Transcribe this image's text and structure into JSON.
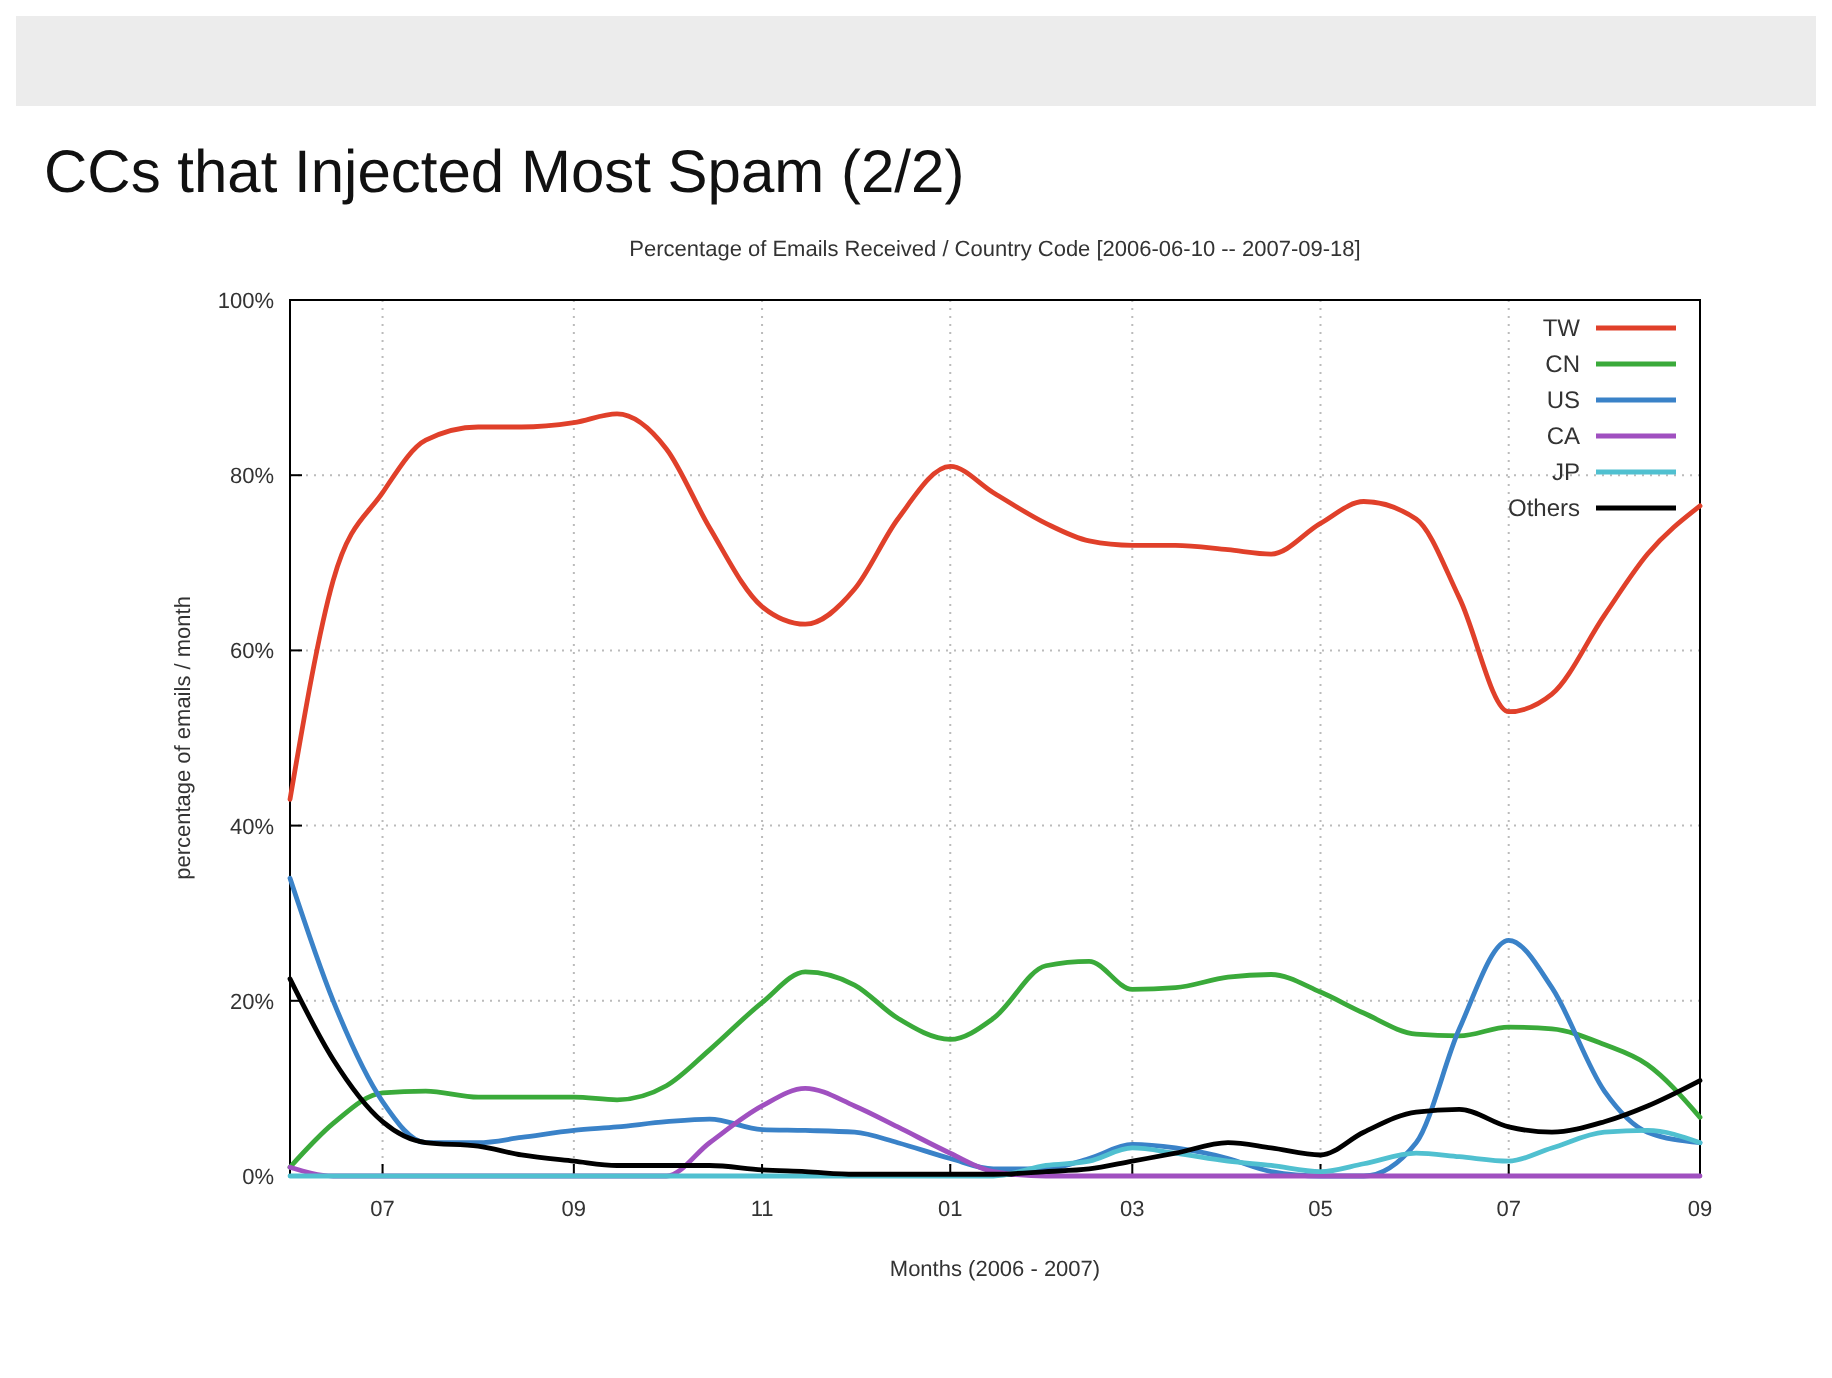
{
  "chart_data": {
    "type": "line",
    "title": "CCs that Injected Most Spam (2/2)",
    "subtitle": "Percentage of Emails Received / Country Code [2006-06-10 -- 2007-09-18]",
    "xlabel": "Months (2006 - 2007)",
    "ylabel": "percentage of emails / month",
    "x": [
      "2006-06-01",
      "2006-06-15",
      "2006-07-01",
      "2006-07-15",
      "2006-08-01",
      "2006-08-15",
      "2006-09-01",
      "2006-09-15",
      "2006-10-01",
      "2006-10-15",
      "2006-11-01",
      "2006-11-15",
      "2006-12-01",
      "2006-12-15",
      "2007-01-01",
      "2007-01-15",
      "2007-02-01",
      "2007-02-15",
      "2007-03-01",
      "2007-03-15",
      "2007-04-01",
      "2007-04-15",
      "2007-05-01",
      "2007-05-15",
      "2007-06-01",
      "2007-06-15",
      "2007-07-01",
      "2007-07-15",
      "2007-08-01",
      "2007-08-15",
      "2007-09-01"
    ],
    "series": [
      {
        "name": "TW",
        "color": "#e0402a",
        "values": [
          43,
          68,
          78,
          84,
          85.5,
          85.5,
          86,
          87,
          83,
          74,
          65,
          63,
          67,
          75,
          81,
          78,
          74.5,
          72.5,
          72,
          72,
          71.5,
          71,
          74.5,
          77,
          75,
          66,
          53,
          55,
          64,
          71,
          76.5
        ]
      },
      {
        "name": "CN",
        "color": "#3aaa3a",
        "values": [
          1,
          6,
          9.5,
          9.7,
          9,
          9,
          9,
          8.7,
          10.3,
          14.4,
          19.8,
          23.3,
          21.8,
          18,
          15.6,
          18,
          24,
          24.5,
          21.3,
          21.5,
          22.7,
          23,
          21,
          18.6,
          16.2,
          16,
          17,
          16.8,
          15,
          12.7,
          6.7
        ]
      },
      {
        "name": "US",
        "color": "#3a82c8",
        "values": [
          34,
          20,
          8.5,
          3.8,
          3.8,
          4.4,
          5.2,
          5.6,
          6.2,
          6.5,
          5.3,
          5.2,
          5,
          3.8,
          2,
          0.8,
          0.8,
          2,
          3.6,
          3.2,
          2,
          0.5,
          0,
          0,
          3.8,
          16.8,
          26.9,
          21.5,
          9.7,
          5,
          3.8
        ]
      },
      {
        "name": "CA",
        "color": "#a050c0",
        "values": [
          1,
          0,
          0,
          0,
          0,
          0,
          0,
          0,
          0,
          3.8,
          8,
          10,
          8,
          5.6,
          2.6,
          0.5,
          0,
          0,
          0,
          0,
          0,
          0,
          0,
          0,
          0,
          0,
          0,
          0,
          0,
          0,
          0
        ]
      },
      {
        "name": "JP",
        "color": "#50c0d0",
        "values": [
          0,
          0,
          0,
          0,
          0,
          0,
          0,
          0,
          0,
          0,
          0,
          0,
          0,
          0,
          0,
          0,
          1.2,
          1.7,
          3.2,
          2.6,
          1.7,
          1.2,
          0.5,
          1.4,
          2.6,
          2.2,
          1.7,
          3.2,
          5,
          5.2,
          3.8
        ]
      },
      {
        "name": "Others",
        "color": "#000000",
        "values": [
          22.5,
          13.3,
          6.2,
          3.8,
          3.4,
          2.4,
          1.7,
          1.2,
          1.2,
          1.2,
          0.7,
          0.5,
          0.2,
          0.2,
          0.2,
          0.2,
          0.5,
          0.8,
          1.7,
          2.6,
          3.8,
          3.2,
          2.4,
          5,
          7.3,
          7.6,
          5.6,
          5,
          6.2,
          8,
          10.9
        ]
      }
    ],
    "xlim": [
      "2006-06-01",
      "2007-09-01"
    ],
    "xticks": [
      {
        "value": "2006-07-01",
        "label": "07"
      },
      {
        "value": "2006-09-01",
        "label": "09"
      },
      {
        "value": "2006-11-01",
        "label": "11"
      },
      {
        "value": "2007-01-01",
        "label": "01"
      },
      {
        "value": "2007-03-01",
        "label": "03"
      },
      {
        "value": "2007-05-01",
        "label": "05"
      },
      {
        "value": "2007-07-01",
        "label": "07"
      },
      {
        "value": "2007-09-01",
        "label": "09"
      }
    ],
    "ylim": [
      0,
      100
    ],
    "yticks": [
      {
        "value": 0,
        "label": "0%"
      },
      {
        "value": 20,
        "label": "20%"
      },
      {
        "value": 40,
        "label": "40%"
      },
      {
        "value": 60,
        "label": "60%"
      },
      {
        "value": 80,
        "label": "80%"
      },
      {
        "value": 100,
        "label": "100%"
      }
    ],
    "grid": true,
    "legend": "top right",
    "marker": "none",
    "line_style": "solid"
  }
}
